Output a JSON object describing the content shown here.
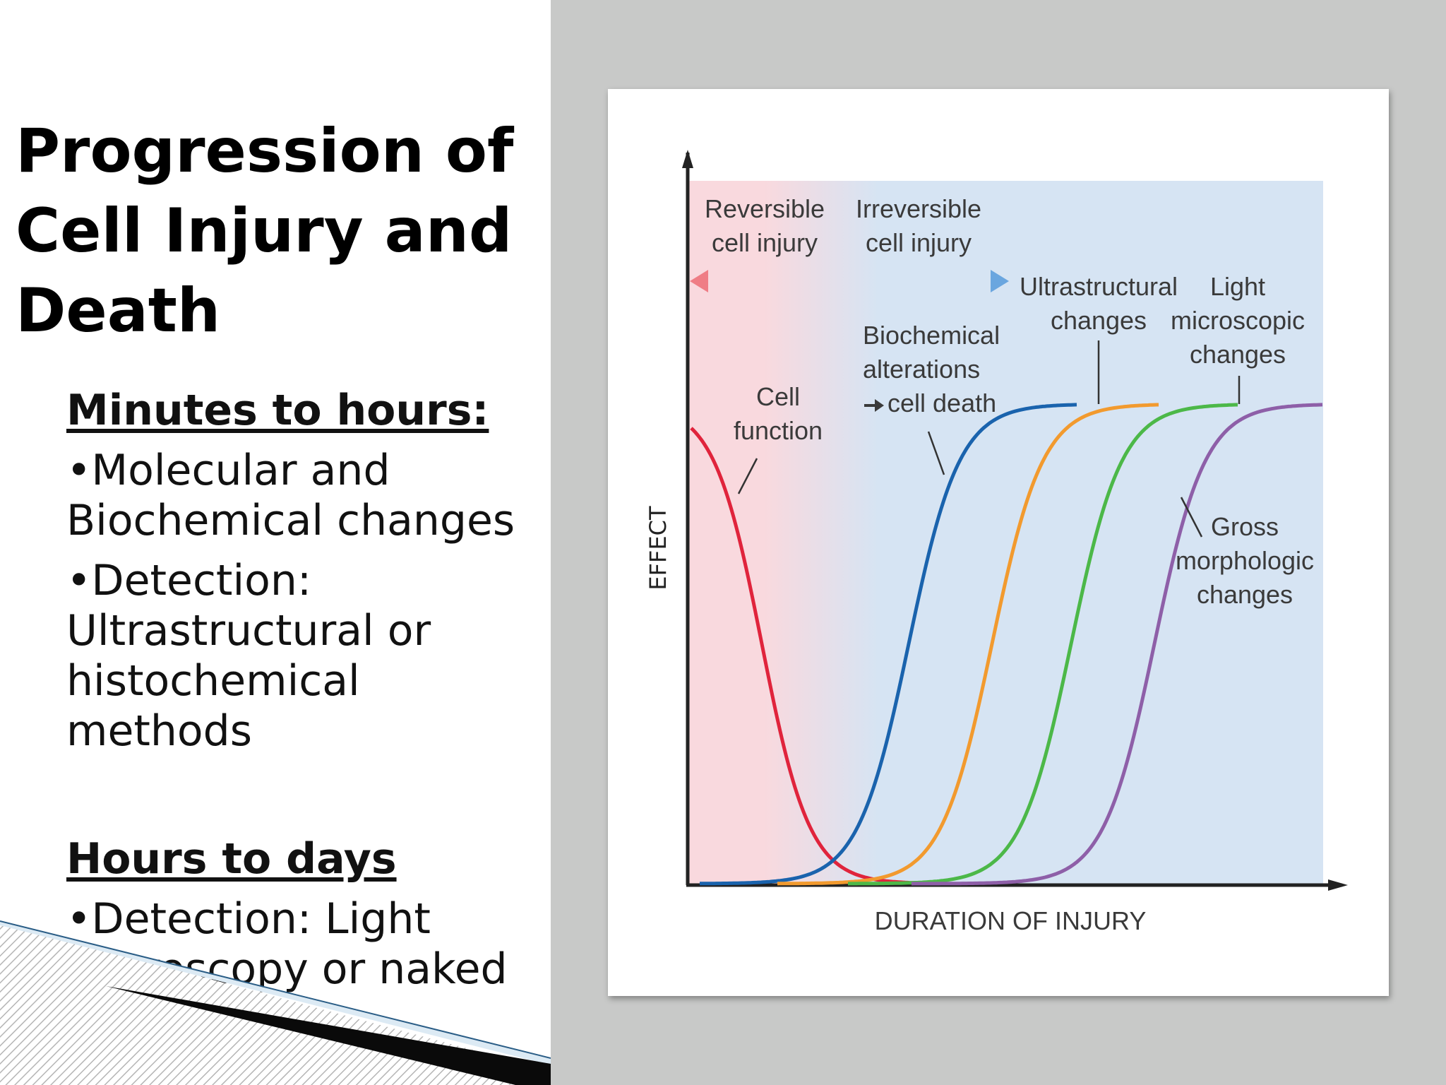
{
  "slide": {
    "title": "Progression of Cell Injury and Death",
    "section1": {
      "heading": "Minutes to hours:",
      "bullets": [
        "•Molecular and Biochemical changes",
        "•Detection: Ultrastructural or histochemical methods"
      ]
    },
    "section2": {
      "heading": "Hours to days",
      "bullets": [
        "•Detection: Light microscopy or naked eye"
      ]
    }
  },
  "figure": {
    "y_axis_label": "EFFECT",
    "x_axis_label": "DURATION OF INJURY",
    "phase_labels": {
      "reversible": [
        "Reversible",
        "cell injury"
      ],
      "irreversible": [
        "Irreversible",
        "cell injury"
      ]
    },
    "curve_labels": {
      "cell_function": [
        "Cell",
        "function"
      ],
      "biochemical": [
        "Biochemical",
        "alterations",
        "cell death"
      ],
      "ultrastructural": [
        "Ultrastructural",
        "changes"
      ],
      "light_microscopic": [
        "Light",
        "microscopic",
        "changes"
      ],
      "gross": [
        "Gross",
        "morphologic",
        "changes"
      ]
    },
    "colors": {
      "cell_function": "#e0243c",
      "biochemical": "#1a63ad",
      "ultrastructural": "#f29a2e",
      "light_microscopic": "#4cb848",
      "gross": "#8e5fa8",
      "reversible_zone": "#f9d9de",
      "irreversible_zone": "#d6e4f3",
      "slide_background": "#c8c9c8"
    }
  }
}
